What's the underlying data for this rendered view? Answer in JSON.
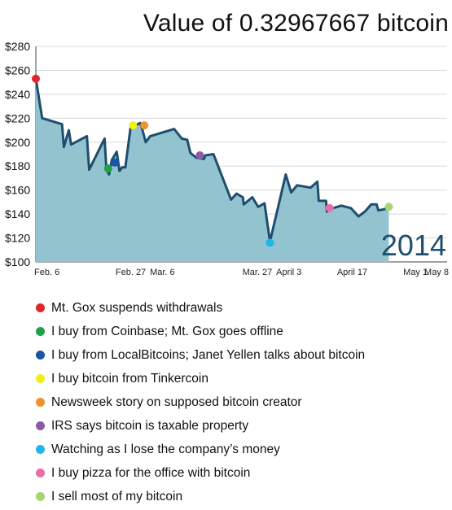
{
  "chart_data": {
    "type": "area",
    "title": "Value of 0.32967667 bitcoin",
    "annotation": "2014",
    "ylim": [
      100,
      280
    ],
    "xlim": [
      0,
      91
    ],
    "y_ticks": [
      {
        "label": "$100",
        "value": 100
      },
      {
        "label": "$120",
        "value": 120
      },
      {
        "label": "$140",
        "value": 140
      },
      {
        "label": "$160",
        "value": 160
      },
      {
        "label": "$180",
        "value": 180
      },
      {
        "label": "$200",
        "value": 200
      },
      {
        "label": "$220",
        "value": 220
      },
      {
        "label": "$240",
        "value": 240
      },
      {
        "label": "$260",
        "value": 260
      },
      {
        "label": "$280",
        "value": 280
      }
    ],
    "x_ticks": [
      {
        "label": "Feb. 6",
        "day": 0
      },
      {
        "label": "Feb. 27",
        "day": 21
      },
      {
        "label": "Mar. 6",
        "day": 28
      },
      {
        "label": "Mar. 27",
        "day": 49
      },
      {
        "label": "April 3",
        "day": 56
      },
      {
        "label": "April 17",
        "day": 70
      },
      {
        "label": "May 1",
        "day": 84
      },
      {
        "label": "May 8",
        "day": 91
      }
    ],
    "grid": true,
    "colors": {
      "line": "#1e4e6f",
      "fill": "#93c3cf",
      "grid": "#d8d8d8"
    },
    "series": [
      {
        "points": [
          [
            0,
            253
          ],
          [
            1.4,
            220
          ],
          [
            5.8,
            215
          ],
          [
            6.2,
            196
          ],
          [
            7.3,
            210
          ],
          [
            7.8,
            198
          ],
          [
            11.3,
            205
          ],
          [
            11.8,
            177
          ],
          [
            15.2,
            203
          ],
          [
            15.6,
            178
          ],
          [
            16.2,
            173
          ],
          [
            16.8,
            185
          ],
          [
            17.9,
            192
          ],
          [
            18.5,
            176
          ],
          [
            19.1,
            179
          ],
          [
            19.8,
            179
          ],
          [
            21,
            213
          ],
          [
            21.5,
            213
          ],
          [
            23.1,
            216
          ],
          [
            23.6,
            210
          ],
          [
            24.3,
            200
          ],
          [
            25.3,
            205
          ],
          [
            30.6,
            211
          ],
          [
            32.3,
            203
          ],
          [
            33.5,
            202
          ],
          [
            34.2,
            191
          ],
          [
            35.5,
            187
          ],
          [
            37.2,
            186
          ],
          [
            37.5,
            189
          ],
          [
            39.3,
            190
          ],
          [
            43.2,
            152
          ],
          [
            44.4,
            157
          ],
          [
            45.8,
            154
          ],
          [
            46,
            148
          ],
          [
            47.9,
            154
          ],
          [
            49.2,
            146
          ],
          [
            50.6,
            149
          ],
          [
            51.8,
            117
          ],
          [
            55.3,
            173
          ],
          [
            56.5,
            158
          ],
          [
            57.8,
            164
          ],
          [
            60.8,
            162
          ],
          [
            62.3,
            167
          ],
          [
            62.6,
            151
          ],
          [
            64.2,
            151
          ],
          [
            64.4,
            142
          ],
          [
            65,
            144
          ],
          [
            67.6,
            147
          ],
          [
            69.7,
            145
          ],
          [
            71.4,
            138
          ],
          [
            72.8,
            142
          ],
          [
            74.2,
            148
          ],
          [
            75.4,
            148
          ],
          [
            75.8,
            143
          ],
          [
            77.1,
            144
          ],
          [
            78.1,
            146
          ]
        ]
      }
    ],
    "events": [
      {
        "label": "Mt. Gox suspends withdrawals",
        "color": "#e0252c",
        "day": 0,
        "value": 253
      },
      {
        "label": "I buy from Coinbase; Mt. Gox goes offline",
        "color": "#1ea14a",
        "day": 16,
        "value": 178
      },
      {
        "label": "I buy from LocalBitcoins; Janet Yellen talks about bitcoin",
        "color": "#1855a6",
        "day": 17.5,
        "value": 183
      },
      {
        "label": "I buy bitcoin from Tinkercoin",
        "color": "#f2ee1b",
        "day": 21.5,
        "value": 214
      },
      {
        "label": "Newsweek story on supposed bitcoin creator",
        "color": "#f0922b",
        "day": 24,
        "value": 214
      },
      {
        "label": "IRS says bitcoin is taxable property",
        "color": "#8d5ba6",
        "day": 36.3,
        "value": 189
      },
      {
        "label": "Watching as I lose the company’s money",
        "color": "#20b6e8",
        "day": 51.8,
        "value": 116
      },
      {
        "label": "I buy pizza for the office with bitcoin",
        "color": "#ea6fa5",
        "day": 65,
        "value": 145
      },
      {
        "label": "I sell most of my bitcoin",
        "color": "#a9d472",
        "day": 78.1,
        "value": 146
      }
    ]
  }
}
